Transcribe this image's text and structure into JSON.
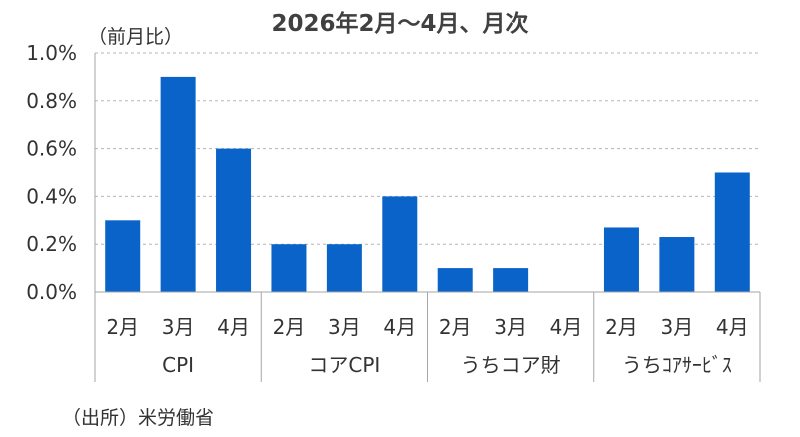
{
  "chart_data": {
    "type": "bar",
    "title": "2026年2月～4月、月次",
    "ylabel": "（前月比）",
    "ylim": [
      0,
      1.0
    ],
    "yticks": [
      "0.0%",
      "0.2%",
      "0.4%",
      "0.6%",
      "0.8%",
      "1.0%"
    ],
    "grid": "horizontal-dashed",
    "bar_color": "#0a63c9",
    "groups": [
      {
        "name": "CPI",
        "categories": [
          "2月",
          "3月",
          "4月"
        ],
        "values": [
          0.3,
          0.9,
          0.6
        ]
      },
      {
        "name": "コアCPI",
        "categories": [
          "2月",
          "3月",
          "4月"
        ],
        "values": [
          0.2,
          0.2,
          0.4
        ]
      },
      {
        "name": "うちコア財",
        "categories": [
          "2月",
          "3月",
          "4月"
        ],
        "values": [
          0.1,
          0.1,
          0.0
        ]
      },
      {
        "name": "うちｺｱｻｰﾋﾞｽ",
        "categories": [
          "2月",
          "3月",
          "4月"
        ],
        "values": [
          0.27,
          0.23,
          0.5
        ]
      }
    ]
  },
  "source_note": "（出所）米労働省"
}
